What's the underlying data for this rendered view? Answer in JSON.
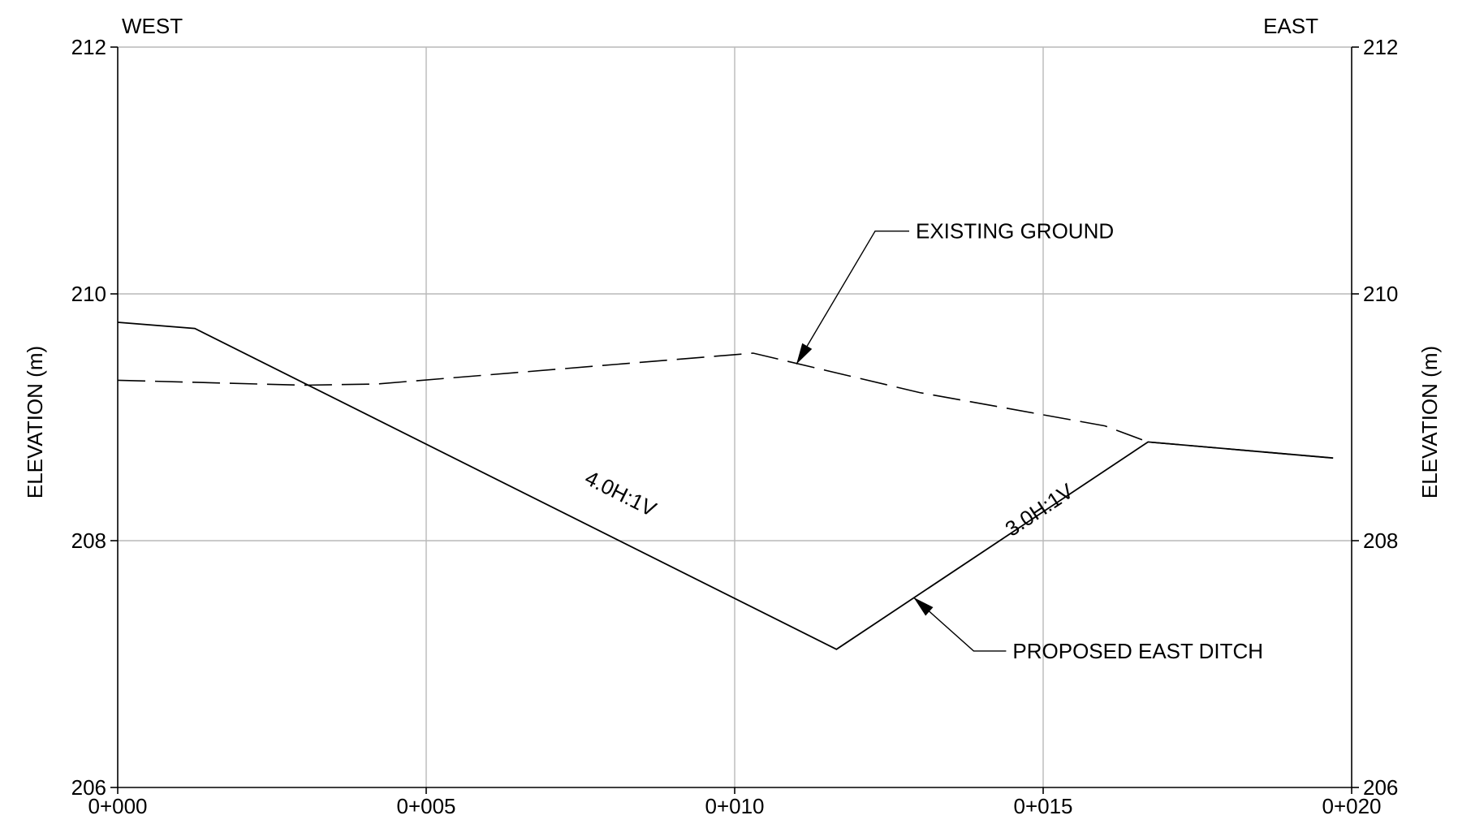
{
  "chart_data": {
    "type": "line",
    "title": "",
    "xlabel": "",
    "ylabel": "ELEVATION (m)",
    "ylabel_right": "ELEVATION (m)",
    "side_labels": {
      "left": "WEST",
      "right": "EAST"
    },
    "xlim": [
      0,
      20
    ],
    "ylim": [
      206,
      212
    ],
    "grid": true,
    "x_ticks": [
      {
        "value": 0,
        "label": "0+000"
      },
      {
        "value": 5,
        "label": "0+005"
      },
      {
        "value": 10,
        "label": "0+010"
      },
      {
        "value": 15,
        "label": "0+015"
      },
      {
        "value": 20,
        "label": "0+020"
      }
    ],
    "y_ticks": [
      {
        "value": 206,
        "label": "206"
      },
      {
        "value": 208,
        "label": "208"
      },
      {
        "value": 210,
        "label": "210"
      },
      {
        "value": 212,
        "label": "212"
      }
    ],
    "series": [
      {
        "name": "EXISTING GROUND",
        "style": "dashed",
        "x": [
          0.0,
          3.0,
          4.2,
          10.3,
          13.0,
          16.0,
          16.7,
          19.7
        ],
        "y": [
          209.3,
          209.26,
          209.27,
          209.52,
          209.2,
          208.93,
          208.8,
          208.67
        ]
      },
      {
        "name": "PROPOSED EAST DITCH",
        "style": "solid",
        "x": [
          0.0,
          1.25,
          11.65,
          16.7,
          19.7
        ],
        "y": [
          209.77,
          209.72,
          207.12,
          208.8,
          208.67
        ]
      }
    ],
    "annotations": [
      {
        "text": "4.0H:1V",
        "x": 8.1,
        "y": 208.33
      },
      {
        "text": "3.0H:1V",
        "x": 15.0,
        "y": 208.2
      },
      {
        "text": "EXISTING GROUND",
        "target_x": 11.0,
        "target_y": 209.43
      },
      {
        "text": "PROPOSED EAST DITCH",
        "target_x": 12.9,
        "target_y": 207.54
      }
    ]
  }
}
